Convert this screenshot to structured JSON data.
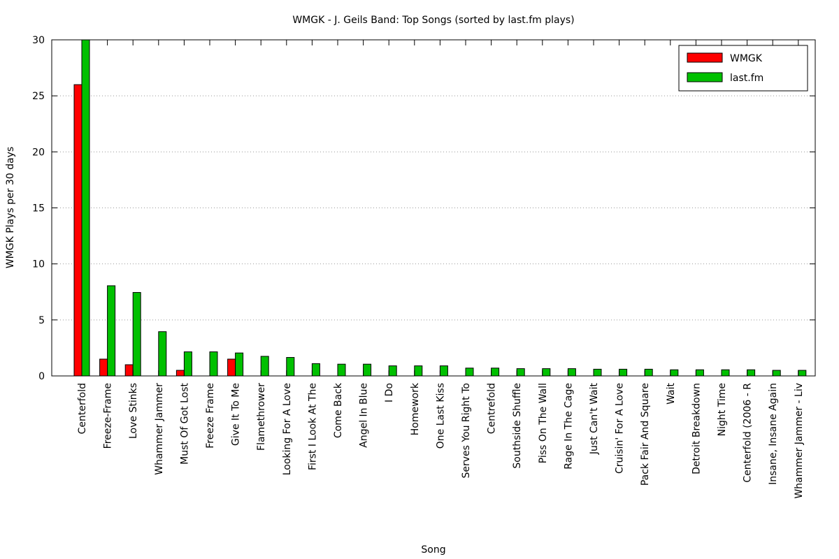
{
  "chart_data": {
    "type": "bar",
    "title": "WMGK - J. Geils Band: Top Songs (sorted by last.fm plays)",
    "xlabel": "Song",
    "ylabel": "WMGK Plays per 30 days",
    "ylim": [
      0,
      30
    ],
    "yticks": [
      0,
      5,
      10,
      15,
      20,
      25,
      30
    ],
    "grid": true,
    "legend_position": "top-right",
    "categories": [
      "Centerfold",
      "Freeze-Frame",
      "Love Stinks",
      "Whammer Jammer",
      "Must Of Got Lost",
      "Freeze Frame",
      "Give It To Me",
      "Flamethrower",
      "Looking For A Love",
      "First I Look At The",
      "Come Back",
      "Angel In Blue",
      "I Do",
      "Homework",
      "One Last Kiss",
      "Serves You Right To",
      "Centrefold",
      "Southside Shuffle",
      "Piss On The Wall",
      "Rage In The Cage",
      "Just Can't Wait",
      "Cruisin' For A Love",
      "Pack Fair And Square",
      "Wait",
      "Detroit Breakdown",
      "Night Time",
      "Centerfold (2006 - R",
      "Insane, Insane Again",
      "Whammer Jammer - Liv"
    ],
    "series": [
      {
        "name": "WMGK",
        "color": "#ff0000",
        "values": [
          26,
          1.5,
          1,
          0,
          0.5,
          0,
          1.5,
          0,
          0,
          0,
          0,
          0,
          0,
          0,
          0,
          0,
          0,
          0,
          0,
          0,
          0,
          0,
          0,
          0,
          0,
          0,
          0,
          0,
          0
        ]
      },
      {
        "name": "last.fm",
        "color": "#00c000",
        "values": [
          30,
          8.05,
          7.45,
          3.95,
          2.15,
          2.15,
          2.05,
          1.75,
          1.65,
          1.1,
          1.05,
          1.05,
          0.9,
          0.9,
          0.9,
          0.7,
          0.7,
          0.65,
          0.65,
          0.65,
          0.6,
          0.6,
          0.6,
          0.55,
          0.55,
          0.55,
          0.55,
          0.5,
          0.5
        ]
      }
    ]
  }
}
